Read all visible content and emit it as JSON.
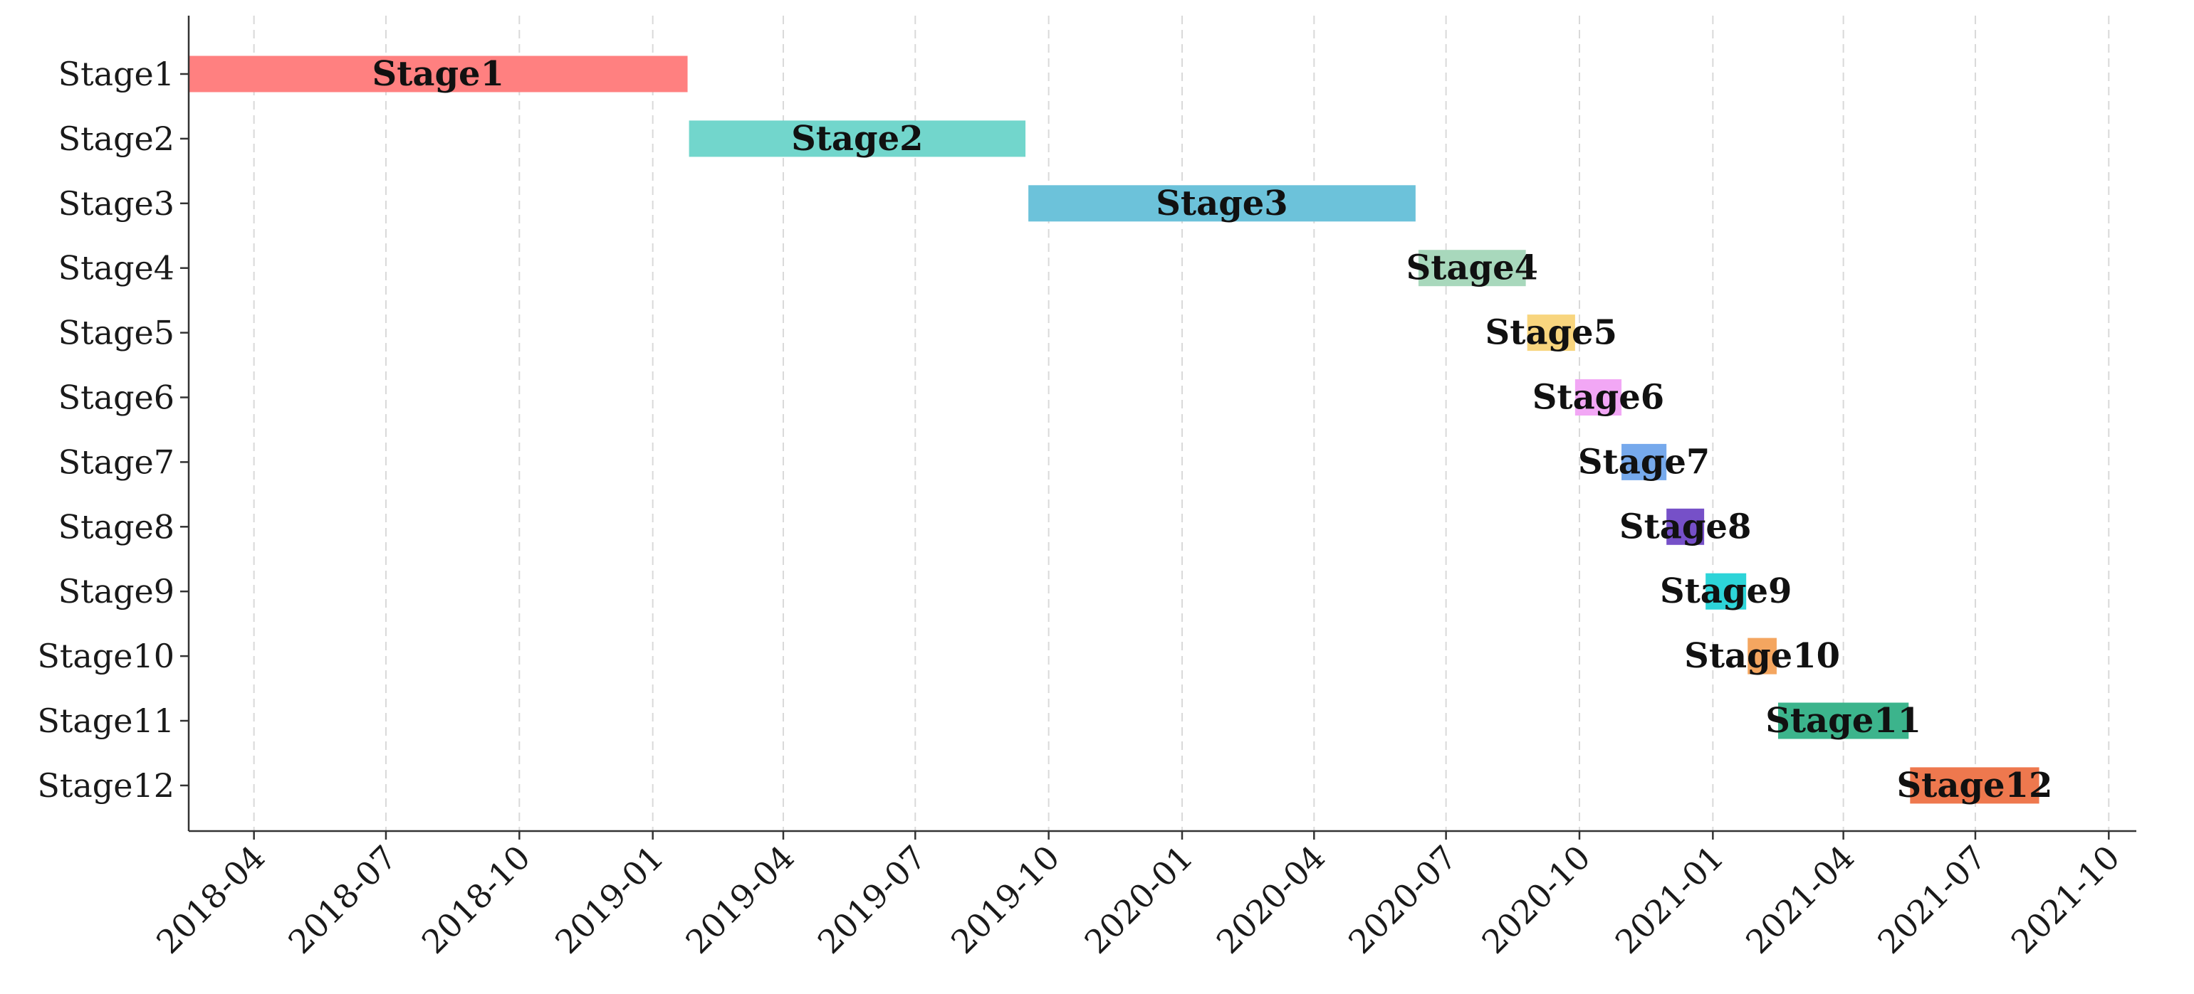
{
  "chart_data": {
    "type": "gantt",
    "title": "",
    "xlabel": "",
    "ylabel": "",
    "x_axis": "date",
    "xlim": [
      "2018-02-15",
      "2021-10-20"
    ],
    "grid": {
      "x": true,
      "y": false,
      "style": "dashed"
    },
    "x_ticks": [
      "2018-04",
      "2018-07",
      "2018-10",
      "2019-01",
      "2019-04",
      "2019-07",
      "2019-10",
      "2020-01",
      "2020-04",
      "2020-07",
      "2020-10",
      "2021-01",
      "2021-04",
      "2021-07",
      "2021-10"
    ],
    "tasks": [
      {
        "label": "Stage1",
        "start": "2018-02-15",
        "end": "2019-01-25",
        "color": "#FF8080"
      },
      {
        "label": "Stage2",
        "start": "2019-01-26",
        "end": "2019-09-15",
        "color": "#72D6CC"
      },
      {
        "label": "Stage3",
        "start": "2019-09-17",
        "end": "2020-06-10",
        "color": "#6CC2DA"
      },
      {
        "label": "Stage4",
        "start": "2020-06-12",
        "end": "2020-08-25",
        "color": "#A8D8BC"
      },
      {
        "label": "Stage5",
        "start": "2020-08-26",
        "end": "2020-09-28",
        "color": "#F8D57E"
      },
      {
        "label": "Stage6",
        "start": "2020-09-28",
        "end": "2020-10-30",
        "color": "#F2A7F5"
      },
      {
        "label": "Stage7",
        "start": "2020-10-30",
        "end": "2020-11-30",
        "color": "#76A9EC"
      },
      {
        "label": "Stage8",
        "start": "2020-11-30",
        "end": "2020-12-26",
        "color": "#7650C8"
      },
      {
        "label": "Stage9",
        "start": "2020-12-27",
        "end": "2021-01-24",
        "color": "#2DD4D8"
      },
      {
        "label": "Stage10",
        "start": "2021-01-25",
        "end": "2021-02-14",
        "color": "#F4A660"
      },
      {
        "label": "Stage11",
        "start": "2021-02-15",
        "end": "2021-05-16",
        "color": "#3CB48C"
      },
      {
        "label": "Stage12",
        "start": "2021-05-17",
        "end": "2021-08-14",
        "color": "#EE784E"
      }
    ]
  }
}
